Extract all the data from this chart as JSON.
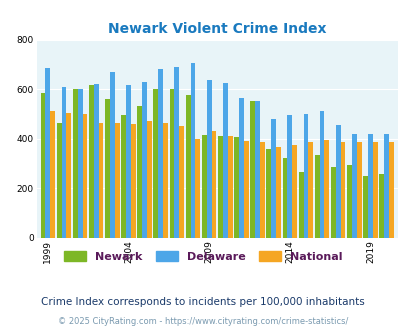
{
  "title": "Newark Violent Crime Index",
  "subtitle": "Crime Index corresponds to incidents per 100,000 inhabitants",
  "footer": "© 2025 CityRating.com - https://www.cityrating.com/crime-statistics/",
  "years": [
    1999,
    2000,
    2001,
    2002,
    2003,
    2004,
    2005,
    2006,
    2007,
    2008,
    2009,
    2010,
    2011,
    2012,
    2013,
    2014,
    2015,
    2016,
    2017,
    2018,
    2019,
    2020
  ],
  "newark": [
    585,
    465,
    600,
    615,
    560,
    495,
    530,
    600,
    600,
    575,
    415,
    410,
    405,
    550,
    360,
    320,
    265,
    335,
    285,
    295,
    250,
    255
  ],
  "delaware": [
    685,
    610,
    600,
    620,
    670,
    615,
    630,
    680,
    690,
    705,
    635,
    625,
    565,
    550,
    480,
    495,
    500,
    510,
    455,
    420,
    420,
    420
  ],
  "national": [
    510,
    505,
    500,
    465,
    465,
    460,
    470,
    465,
    450,
    400,
    430,
    410,
    390,
    385,
    365,
    375,
    385,
    395,
    385,
    385,
    385,
    385
  ],
  "bar_colors": {
    "newark": "#7db726",
    "delaware": "#4da6e8",
    "national": "#f5a623"
  },
  "ylim": [
    0,
    800
  ],
  "yticks": [
    0,
    200,
    400,
    600,
    800
  ],
  "xtick_years": [
    1999,
    2004,
    2009,
    2014,
    2019
  ],
  "bg_color": "#e8f4f8",
  "title_color": "#1a7abf",
  "legend_label_color": "#5a1a5a",
  "subtitle_color": "#1a3a6a",
  "footer_color": "#7a9ab0"
}
